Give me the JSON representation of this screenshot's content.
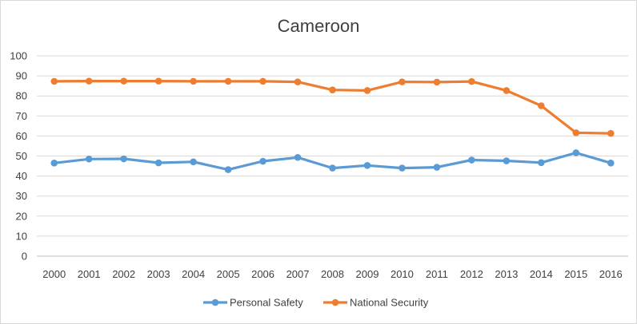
{
  "chart_data": {
    "type": "line",
    "title": "Cameroon",
    "xlabel": "",
    "ylabel": "",
    "categories": [
      "2000",
      "2001",
      "2002",
      "2003",
      "2004",
      "2005",
      "2006",
      "2007",
      "2008",
      "2009",
      "2010",
      "2011",
      "2012",
      "2013",
      "2014",
      "2015",
      "2016"
    ],
    "ylim": [
      0,
      100
    ],
    "yticks": [
      0,
      10,
      20,
      30,
      40,
      50,
      60,
      70,
      80,
      90,
      100
    ],
    "grid": true,
    "legend_position": "bottom",
    "series": [
      {
        "name": "Personal Safety",
        "color": "#5b9bd5",
        "values": [
          46.5,
          48.5,
          48.6,
          46.6,
          47.1,
          43.2,
          47.4,
          49.3,
          44.0,
          45.3,
          44.0,
          44.4,
          48.0,
          47.6,
          46.7,
          51.6,
          46.5
        ]
      },
      {
        "name": "National Security",
        "color": "#ed7d31",
        "values": [
          87.3,
          87.4,
          87.4,
          87.4,
          87.3,
          87.3,
          87.3,
          87.0,
          83.0,
          82.7,
          87.0,
          86.9,
          87.2,
          82.7,
          75.1,
          61.6,
          61.3
        ]
      }
    ]
  }
}
